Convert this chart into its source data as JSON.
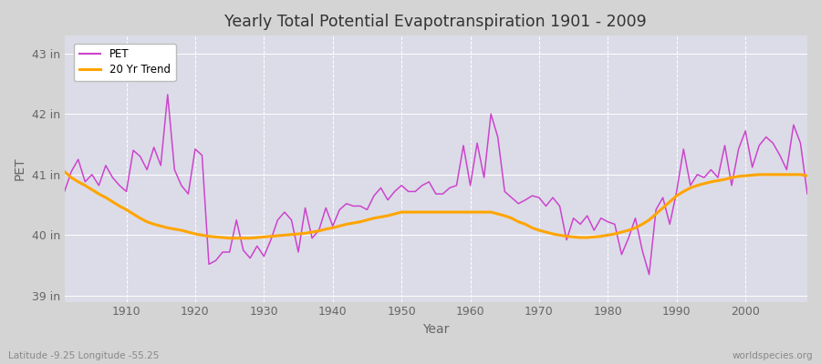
{
  "title": "Yearly Total Potential Evapotranspiration 1901 - 2009",
  "xlabel": "Year",
  "ylabel": "PET",
  "subtitle_left": "Latitude -9.25 Longitude -55.25",
  "subtitle_right": "worldspecies.org",
  "ylim": [
    38.9,
    43.3
  ],
  "ytick_labels": [
    "39 in",
    "40 in",
    "41 in",
    "42 in",
    "43 in"
  ],
  "ytick_values": [
    39,
    40,
    41,
    42,
    43
  ],
  "pet_color": "#cc44cc",
  "trend_color": "#FFA500",
  "fig_bg_color": "#d4d4d4",
  "plot_bg_color": "#dcdce8",
  "years": [
    1901,
    1902,
    1903,
    1904,
    1905,
    1906,
    1907,
    1908,
    1909,
    1910,
    1911,
    1912,
    1913,
    1914,
    1915,
    1916,
    1917,
    1918,
    1919,
    1920,
    1921,
    1922,
    1923,
    1924,
    1925,
    1926,
    1927,
    1928,
    1929,
    1930,
    1931,
    1932,
    1933,
    1934,
    1935,
    1936,
    1937,
    1938,
    1939,
    1940,
    1941,
    1942,
    1943,
    1944,
    1945,
    1946,
    1947,
    1948,
    1949,
    1950,
    1951,
    1952,
    1953,
    1954,
    1955,
    1956,
    1957,
    1958,
    1959,
    1960,
    1961,
    1962,
    1963,
    1964,
    1965,
    1966,
    1967,
    1968,
    1969,
    1970,
    1971,
    1972,
    1973,
    1974,
    1975,
    1976,
    1977,
    1978,
    1979,
    1980,
    1981,
    1982,
    1983,
    1984,
    1985,
    1986,
    1987,
    1988,
    1989,
    1990,
    1991,
    1992,
    1993,
    1994,
    1995,
    1996,
    1997,
    1998,
    1999,
    2000,
    2001,
    2002,
    2003,
    2004,
    2005,
    2006,
    2007,
    2008,
    2009
  ],
  "pet": [
    40.72,
    41.05,
    41.25,
    40.88,
    41.0,
    40.82,
    41.15,
    40.95,
    40.82,
    40.72,
    41.4,
    41.3,
    41.08,
    41.45,
    41.15,
    42.32,
    41.08,
    40.82,
    40.68,
    41.42,
    41.32,
    39.52,
    39.58,
    39.72,
    39.72,
    40.25,
    39.75,
    39.62,
    39.82,
    39.65,
    39.92,
    40.25,
    40.38,
    40.25,
    39.72,
    40.45,
    39.95,
    40.08,
    40.45,
    40.15,
    40.42,
    40.52,
    40.48,
    40.48,
    40.42,
    40.65,
    40.78,
    40.58,
    40.72,
    40.82,
    40.72,
    40.72,
    40.82,
    40.88,
    40.68,
    40.68,
    40.78,
    40.82,
    41.48,
    40.82,
    41.52,
    40.95,
    42.0,
    41.62,
    40.72,
    40.62,
    40.52,
    40.58,
    40.65,
    40.62,
    40.48,
    40.62,
    40.48,
    39.92,
    40.28,
    40.18,
    40.32,
    40.08,
    40.28,
    40.22,
    40.18,
    39.68,
    39.95,
    40.28,
    39.75,
    39.35,
    40.42,
    40.62,
    40.18,
    40.72,
    41.42,
    40.82,
    41.0,
    40.95,
    41.08,
    40.95,
    41.48,
    40.82,
    41.42,
    41.72,
    41.12,
    41.48,
    41.62,
    41.52,
    41.32,
    41.08,
    41.82,
    41.52,
    40.68
  ],
  "trend_20yr": [
    41.05,
    40.95,
    40.88,
    40.82,
    40.75,
    40.68,
    40.62,
    40.55,
    40.48,
    40.42,
    40.35,
    40.28,
    40.22,
    40.18,
    40.15,
    40.12,
    40.1,
    40.08,
    40.05,
    40.02,
    40.0,
    39.98,
    39.97,
    39.96,
    39.95,
    39.95,
    39.95,
    39.95,
    39.96,
    39.97,
    39.98,
    39.99,
    40.0,
    40.01,
    40.02,
    40.03,
    40.05,
    40.07,
    40.1,
    40.12,
    40.15,
    40.18,
    40.2,
    40.22,
    40.25,
    40.28,
    40.3,
    40.32,
    40.35,
    40.38,
    40.38,
    40.38,
    40.38,
    40.38,
    40.38,
    40.38,
    40.38,
    40.38,
    40.38,
    40.38,
    40.38,
    40.38,
    40.38,
    40.35,
    40.32,
    40.28,
    40.22,
    40.18,
    40.12,
    40.08,
    40.05,
    40.02,
    40.0,
    39.98,
    39.97,
    39.96,
    39.96,
    39.97,
    39.98,
    40.0,
    40.02,
    40.05,
    40.08,
    40.12,
    40.18,
    40.25,
    40.35,
    40.45,
    40.55,
    40.65,
    40.72,
    40.78,
    40.82,
    40.85,
    40.88,
    40.9,
    40.92,
    40.95,
    40.97,
    40.98,
    40.99,
    41.0,
    41.0,
    41.0,
    41.0,
    41.0,
    41.0,
    41.0,
    40.98
  ]
}
